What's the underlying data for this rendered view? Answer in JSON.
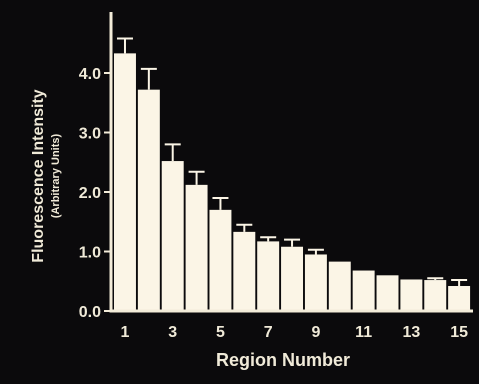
{
  "chart_data": {
    "type": "bar",
    "title": "",
    "xlabel": "Region Number",
    "ylabel": "Fluorescence Intensity",
    "ylabel_sub": "(Arbitrary Units)",
    "categories": [
      "1",
      "2",
      "3",
      "4",
      "5",
      "6",
      "7",
      "8",
      "9",
      "10",
      "11",
      "12",
      "13",
      "14",
      "15"
    ],
    "x_tick_labels": [
      "1",
      "3",
      "5",
      "7",
      "9",
      "11",
      "13",
      "15"
    ],
    "y_tick_labels": [
      "0.0",
      "1.0",
      "2.0",
      "3.0",
      "4.0"
    ],
    "y_ticks": [
      0,
      1,
      2,
      3,
      4
    ],
    "ylim": [
      0,
      5
    ],
    "values": [
      4.33,
      3.72,
      2.52,
      2.12,
      1.7,
      1.33,
      1.17,
      1.08,
      0.95,
      0.83,
      0.68,
      0.6,
      0.53,
      0.52,
      0.42
    ],
    "error_upper": [
      0.25,
      0.35,
      0.28,
      0.22,
      0.2,
      0.12,
      0.07,
      0.12,
      0.08,
      0.0,
      0.0,
      0.0,
      0.0,
      0.03,
      0.1
    ],
    "grid": false,
    "legend": "none",
    "colors": {
      "background": "#0b0a0c",
      "bar": "#fbf5e6",
      "axis": "#f3ecd9",
      "text": "#f0ead8"
    }
  }
}
